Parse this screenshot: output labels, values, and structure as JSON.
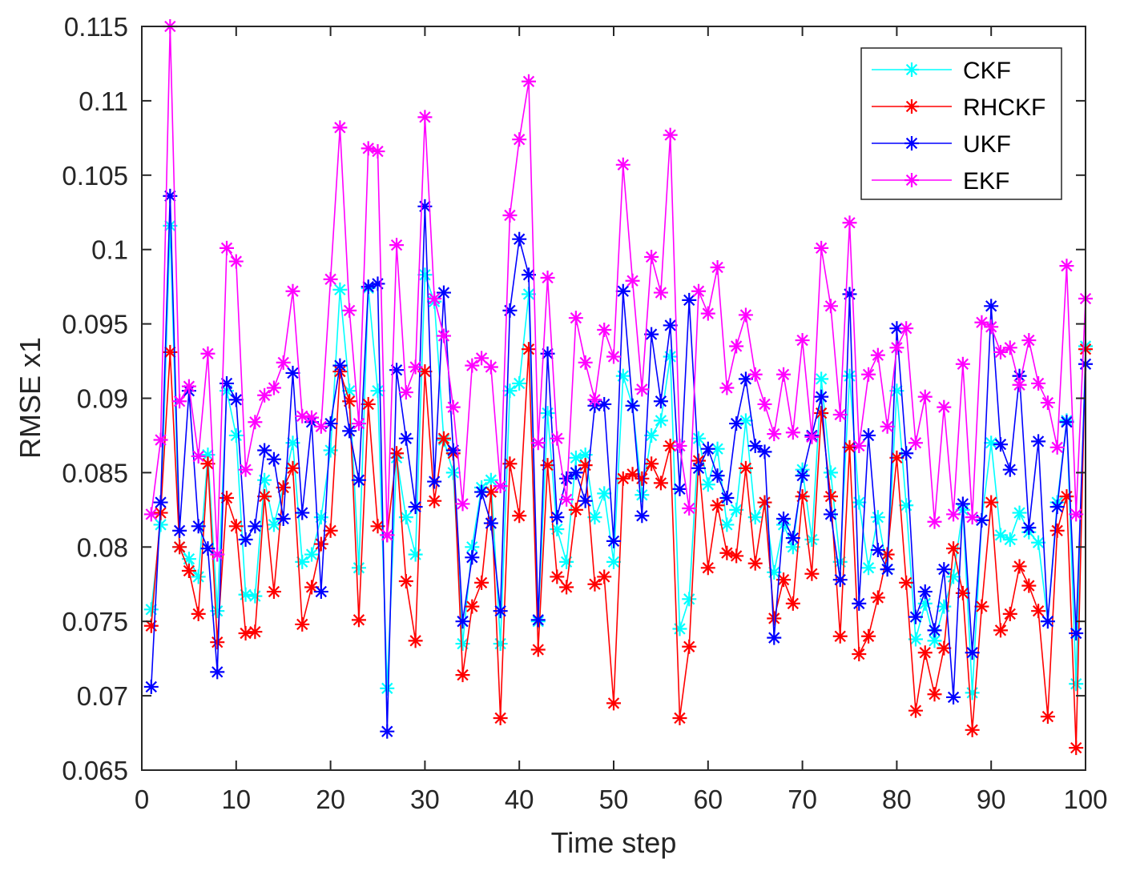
{
  "chart_data": {
    "type": "line",
    "title": "",
    "xlabel": "Time step",
    "ylabel": "RMSE x1",
    "xlim": [
      0,
      100
    ],
    "ylim": [
      0.065,
      0.115
    ],
    "xticks": [
      0,
      10,
      20,
      30,
      40,
      50,
      60,
      70,
      80,
      90,
      100
    ],
    "xtick_labels": [
      "0",
      "10",
      "20",
      "30",
      "40",
      "50",
      "60",
      "70",
      "80",
      "90",
      "100"
    ],
    "yticks": [
      0.065,
      0.07,
      0.075,
      0.08,
      0.085,
      0.09,
      0.095,
      0.1,
      0.105,
      0.11,
      0.115
    ],
    "ytick_labels": [
      "0.065",
      "0.07",
      "0.075",
      "0.08",
      "0.085",
      "0.09",
      "0.095",
      "0.1",
      "0.105",
      "0.11",
      "0.115"
    ],
    "grid": false,
    "legend_position": "top-right",
    "marker": "asterisk",
    "x": [
      1,
      2,
      3,
      4,
      5,
      6,
      7,
      8,
      9,
      10,
      11,
      12,
      13,
      14,
      15,
      16,
      17,
      18,
      19,
      20,
      21,
      22,
      23,
      24,
      25,
      26,
      27,
      28,
      29,
      30,
      31,
      32,
      33,
      34,
      35,
      36,
      37,
      38,
      39,
      40,
      41,
      42,
      43,
      44,
      45,
      46,
      47,
      48,
      49,
      50,
      51,
      52,
      53,
      54,
      55,
      56,
      57,
      58,
      59,
      60,
      61,
      62,
      63,
      64,
      65,
      66,
      67,
      68,
      69,
      70,
      71,
      72,
      73,
      74,
      75,
      76,
      77,
      78,
      79,
      80,
      81,
      82,
      83,
      84,
      85,
      86,
      87,
      88,
      89,
      90,
      91,
      92,
      93,
      94,
      95,
      96,
      97,
      98,
      99,
      100
    ],
    "series": [
      {
        "name": "CKF",
        "color": "#00ffff",
        "values": [
          0.0758,
          0.0815,
          0.1016,
          0.08,
          0.0792,
          0.078,
          0.0862,
          0.0757,
          0.0905,
          0.0875,
          0.0768,
          0.0767,
          0.0845,
          0.0815,
          0.084,
          0.087,
          0.079,
          0.0795,
          0.082,
          0.0865,
          0.0973,
          0.0905,
          0.0786,
          0.0974,
          0.0905,
          0.0705,
          0.086,
          0.082,
          0.0795,
          0.0983,
          0.0965,
          0.0872,
          0.085,
          0.0735,
          0.08,
          0.084,
          0.0845,
          0.0735,
          0.0905,
          0.091,
          0.097,
          0.075,
          0.089,
          0.0812,
          0.079,
          0.086,
          0.0862,
          0.082,
          0.0836,
          0.079,
          0.0915,
          0.0895,
          0.0835,
          0.0875,
          0.0885,
          0.0928,
          0.0745,
          0.0765,
          0.0873,
          0.0842,
          0.0866,
          0.0815,
          0.0825,
          0.0885,
          0.082,
          0.083,
          0.0783,
          0.0815,
          0.08,
          0.0852,
          0.0805,
          0.0913,
          0.085,
          0.079,
          0.0915,
          0.083,
          0.0786,
          0.082,
          0.0785,
          0.0905,
          0.0828,
          0.0738,
          0.0762,
          0.0737,
          0.076,
          0.078,
          0.0825,
          0.0702,
          0.0818,
          0.087,
          0.0808,
          0.0805,
          0.0823,
          0.081,
          0.0803,
          0.075,
          0.083,
          0.0885,
          0.0708,
          0.0935
        ]
      },
      {
        "name": "RHCKF",
        "color": "#ff0000",
        "values": [
          0.0747,
          0.0823,
          0.0931,
          0.08,
          0.0784,
          0.0755,
          0.0856,
          0.0736,
          0.0833,
          0.0814,
          0.0742,
          0.0743,
          0.0834,
          0.077,
          0.084,
          0.0853,
          0.0748,
          0.0773,
          0.0802,
          0.0811,
          0.0918,
          0.0898,
          0.0751,
          0.0896,
          0.0814,
          0.0808,
          0.0863,
          0.0777,
          0.0737,
          0.0918,
          0.0831,
          0.0873,
          0.0863,
          0.0714,
          0.076,
          0.0776,
          0.0837,
          0.0685,
          0.0856,
          0.0821,
          0.0933,
          0.0731,
          0.0855,
          0.078,
          0.0773,
          0.0825,
          0.0855,
          0.0775,
          0.078,
          0.0695,
          0.0846,
          0.0849,
          0.0846,
          0.0856,
          0.0843,
          0.0868,
          0.0685,
          0.0733,
          0.0858,
          0.0786,
          0.0828,
          0.0796,
          0.0794,
          0.0853,
          0.0789,
          0.083,
          0.0752,
          0.0778,
          0.0762,
          0.0834,
          0.0782,
          0.089,
          0.0834,
          0.074,
          0.0867,
          0.0728,
          0.074,
          0.0766,
          0.0795,
          0.086,
          0.0776,
          0.069,
          0.0729,
          0.0701,
          0.0732,
          0.0799,
          0.0769,
          0.0677,
          0.076,
          0.083,
          0.0744,
          0.0755,
          0.0787,
          0.0774,
          0.0757,
          0.0686,
          0.0811,
          0.0834,
          0.0665,
          0.0933
        ]
      },
      {
        "name": "UKF",
        "color": "#0000ff",
        "values": [
          0.0706,
          0.083,
          0.1036,
          0.0811,
          0.0905,
          0.0814,
          0.0799,
          0.0716,
          0.091,
          0.0899,
          0.0805,
          0.0814,
          0.0865,
          0.0859,
          0.0819,
          0.0917,
          0.0823,
          0.0884,
          0.077,
          0.0883,
          0.0922,
          0.0878,
          0.0845,
          0.0975,
          0.0977,
          0.0676,
          0.0919,
          0.0873,
          0.0827,
          0.1029,
          0.0844,
          0.0971,
          0.0865,
          0.075,
          0.0793,
          0.0837,
          0.0816,
          0.0757,
          0.0959,
          0.1007,
          0.0983,
          0.0751,
          0.093,
          0.082,
          0.0846,
          0.085,
          0.0831,
          0.0895,
          0.0896,
          0.0804,
          0.0972,
          0.0895,
          0.0821,
          0.0943,
          0.0898,
          0.0949,
          0.0839,
          0.0966,
          0.0853,
          0.0866,
          0.0848,
          0.0833,
          0.0883,
          0.0913,
          0.0868,
          0.0864,
          0.0739,
          0.0819,
          0.0806,
          0.0848,
          0.0875,
          0.0901,
          0.0822,
          0.0778,
          0.097,
          0.0762,
          0.0875,
          0.0798,
          0.0785,
          0.0947,
          0.0863,
          0.0753,
          0.077,
          0.0744,
          0.0785,
          0.0699,
          0.0829,
          0.0729,
          0.0818,
          0.0962,
          0.0869,
          0.0852,
          0.0915,
          0.0813,
          0.0871,
          0.075,
          0.0827,
          0.0884,
          0.0742,
          0.0923
        ]
      },
      {
        "name": "EKF",
        "color": "#ff00ff",
        "values": [
          0.0822,
          0.0872,
          0.115,
          0.0898,
          0.0908,
          0.0861,
          0.093,
          0.0795,
          0.1001,
          0.0992,
          0.0852,
          0.0884,
          0.0902,
          0.0907,
          0.0924,
          0.0972,
          0.0888,
          0.0887,
          0.0881,
          0.098,
          0.1082,
          0.0959,
          0.0883,
          0.1068,
          0.1066,
          0.0808,
          0.1003,
          0.0904,
          0.0921,
          0.1089,
          0.0967,
          0.0942,
          0.0894,
          0.0829,
          0.0922,
          0.0927,
          0.0921,
          0.0841,
          0.1023,
          0.1074,
          0.1113,
          0.087,
          0.0981,
          0.0873,
          0.0832,
          0.0954,
          0.0924,
          0.0899,
          0.0946,
          0.0928,
          0.1057,
          0.0979,
          0.0906,
          0.0995,
          0.0971,
          0.1077,
          0.0868,
          0.0826,
          0.0972,
          0.0957,
          0.0988,
          0.0907,
          0.0935,
          0.0956,
          0.0916,
          0.0896,
          0.0876,
          0.0916,
          0.0877,
          0.0939,
          0.0874,
          0.1001,
          0.0962,
          0.0889,
          0.1018,
          0.0868,
          0.0916,
          0.0929,
          0.0881,
          0.0934,
          0.0947,
          0.087,
          0.0901,
          0.0817,
          0.0894,
          0.0822,
          0.0923,
          0.082,
          0.0951,
          0.0948,
          0.0931,
          0.0934,
          0.0909,
          0.0939,
          0.091,
          0.0897,
          0.0867,
          0.0989,
          0.0822,
          0.0967
        ]
      }
    ]
  }
}
